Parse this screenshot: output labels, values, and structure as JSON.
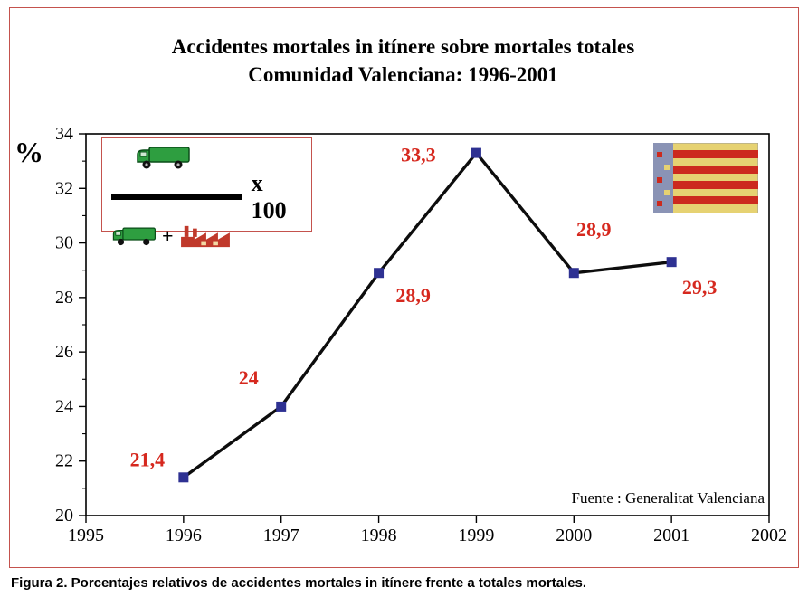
{
  "title": {
    "line1": "Accidentes mortales in itínere sobre mortales totales",
    "line2": "Comunidad Valenciana: 1996-2001"
  },
  "formula": {
    "multiplier_label": "x 100",
    "plus_sign": "+"
  },
  "source": "Fuente : Generalitat Valenciana",
  "caption": "Figura 2. Porcentajes relativos de accidentes mortales in itínere frente a totales mortales.",
  "colors": {
    "accent_red": "#d6281e",
    "marker_navy": "#2e3192",
    "line_black": "#0d0d0d",
    "frame_border": "#c4524d",
    "truck_green": "#2e9e40",
    "factory_red": "#c0392b"
  },
  "chart_data": {
    "type": "line",
    "title": "Accidentes mortales in itínere sobre mortales totales — Comunidad Valenciana: 1996-2001",
    "xlabel": "",
    "ylabel": "%",
    "xlim": [
      1995,
      2002
    ],
    "ylim": [
      20,
      34
    ],
    "x_ticks": [
      1995,
      1996,
      1997,
      1998,
      1999,
      2000,
      2001,
      2002
    ],
    "y_ticks": [
      20,
      22,
      24,
      26,
      28,
      30,
      32,
      34
    ],
    "x": [
      1996,
      1997,
      1998,
      1999,
      2000,
      2001
    ],
    "values": [
      21.4,
      24,
      28.9,
      33.3,
      28.9,
      29.3
    ],
    "point_labels": [
      "21,4",
      "24",
      "28,9",
      "33,3",
      "28,9",
      "29,3"
    ],
    "legend": null,
    "grid": false,
    "source": "Fuente : Generalitat Valenciana"
  }
}
